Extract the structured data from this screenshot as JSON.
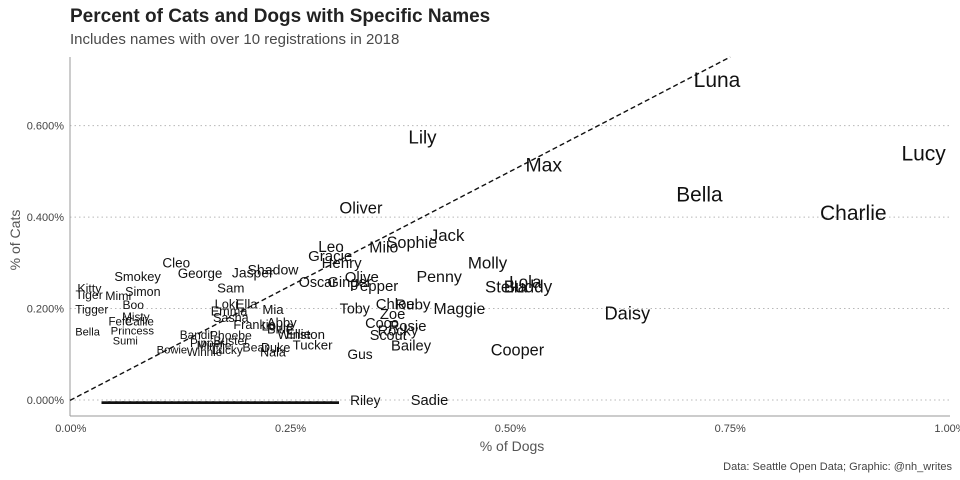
{
  "chart_data": {
    "type": "scatter",
    "title": "Percent of Cats and Dogs with Specific Names",
    "subtitle": "Includes names with over 10 registrations in 2018",
    "xlabel": "% of Dogs",
    "ylabel": "% of Cats",
    "caption": "Data: Seattle Open Data; Graphic: @nh_writes",
    "xlim": [
      -0.0009,
      1.0
    ],
    "ylim": [
      -0.035,
      0.75
    ],
    "x_ticks": [
      0,
      0.25,
      0.5,
      0.75,
      1.0
    ],
    "x_tick_labels": [
      "0.00%",
      "0.25%",
      "0.50%",
      "0.75%",
      "1.00%"
    ],
    "y_ticks": [
      0,
      0.2,
      0.4,
      0.6
    ],
    "y_tick_labels": [
      "0.000%",
      "0.200%",
      "0.400%",
      "0.600%"
    ],
    "grid": "horizontal dotted",
    "reference_line": "y = x (dashed)",
    "points": [
      {
        "name": "Luna",
        "x": 0.735,
        "y": 0.7
      },
      {
        "name": "Lucy",
        "x": 0.97,
        "y": 0.54
      },
      {
        "name": "Lily",
        "x": 0.4,
        "y": 0.575
      },
      {
        "name": "Max",
        "x": 0.538,
        "y": 0.515
      },
      {
        "name": "Bella",
        "x": 0.715,
        "y": 0.45
      },
      {
        "name": "Charlie",
        "x": 0.89,
        "y": 0.41
      },
      {
        "name": "Oliver",
        "x": 0.33,
        "y": 0.42
      },
      {
        "name": "Jack",
        "x": 0.428,
        "y": 0.36
      },
      {
        "name": "Sophie",
        "x": 0.388,
        "y": 0.345
      },
      {
        "name": "Milo",
        "x": 0.356,
        "y": 0.335
      },
      {
        "name": "Leo",
        "x": 0.296,
        "y": 0.335
      },
      {
        "name": "Gracie",
        "x": 0.295,
        "y": 0.315
      },
      {
        "name": "Henry",
        "x": 0.308,
        "y": 0.3
      },
      {
        "name": "Molly",
        "x": 0.474,
        "y": 0.3
      },
      {
        "name": "Cleo",
        "x": 0.12,
        "y": 0.3
      },
      {
        "name": "Shadow",
        "x": 0.23,
        "y": 0.285
      },
      {
        "name": "Jasper",
        "x": 0.207,
        "y": 0.278
      },
      {
        "name": "George",
        "x": 0.147,
        "y": 0.277
      },
      {
        "name": "Smokey",
        "x": 0.076,
        "y": 0.27
      },
      {
        "name": "Penny",
        "x": 0.419,
        "y": 0.27
      },
      {
        "name": "Olive",
        "x": 0.331,
        "y": 0.27
      },
      {
        "name": "Oscar",
        "x": 0.281,
        "y": 0.258
      },
      {
        "name": "Ginger",
        "x": 0.317,
        "y": 0.258
      },
      {
        "name": "Pepper",
        "x": 0.345,
        "y": 0.25
      },
      {
        "name": "Lola",
        "x": 0.517,
        "y": 0.258
      },
      {
        "name": "Stella",
        "x": 0.495,
        "y": 0.248
      },
      {
        "name": "Buddy",
        "x": 0.52,
        "y": 0.248
      },
      {
        "name": "Daisy",
        "x": 0.633,
        "y": 0.19
      },
      {
        "name": "Kitty",
        "x": 0.0,
        "y": 0.245
      },
      {
        "name": "Tiger",
        "x": 0.0,
        "y": 0.23
      },
      {
        "name": "Simon",
        "x": 0.082,
        "y": 0.237
      },
      {
        "name": "Mimi",
        "x": 0.054,
        "y": 0.228
      },
      {
        "name": "Sam",
        "x": 0.182,
        "y": 0.245
      },
      {
        "name": "Boo",
        "x": 0.071,
        "y": 0.208
      },
      {
        "name": "Tigger",
        "x": 0.0,
        "y": 0.198
      },
      {
        "name": "Toby",
        "x": 0.323,
        "y": 0.2
      },
      {
        "name": "Chloe",
        "x": 0.369,
        "y": 0.21
      },
      {
        "name": "Ruby",
        "x": 0.389,
        "y": 0.21
      },
      {
        "name": "Maggie",
        "x": 0.442,
        "y": 0.2
      },
      {
        "name": "Zoe",
        "x": 0.366,
        "y": 0.188
      },
      {
        "name": "Loki",
        "x": 0.177,
        "y": 0.21
      },
      {
        "name": "Ella",
        "x": 0.2,
        "y": 0.21
      },
      {
        "name": "Mia",
        "x": 0.23,
        "y": 0.198
      },
      {
        "name": "Emma",
        "x": 0.18,
        "y": 0.195
      },
      {
        "name": "Sadie",
        "x": 0.408,
        "y": 0.0
      },
      {
        "name": "Riley",
        "x": 0.335,
        "y": 0.0
      },
      {
        "name": "Cooper",
        "x": 0.508,
        "y": 0.11
      },
      {
        "name": "Bailey",
        "x": 0.387,
        "y": 0.12
      },
      {
        "name": "Gus",
        "x": 0.329,
        "y": 0.1
      },
      {
        "name": "Tucker",
        "x": 0.275,
        "y": 0.12
      },
      {
        "name": "Scout",
        "x": 0.361,
        "y": 0.142
      },
      {
        "name": "Rosie",
        "x": 0.383,
        "y": 0.162
      },
      {
        "name": "Coco",
        "x": 0.354,
        "y": 0.168
      },
      {
        "name": "Rocky",
        "x": 0.372,
        "y": 0.152
      },
      {
        "name": "Winston",
        "x": 0.262,
        "y": 0.143
      },
      {
        "name": "Ellie",
        "x": 0.259,
        "y": 0.145
      },
      {
        "name": "Nala",
        "x": 0.23,
        "y": 0.105
      },
      {
        "name": "Bear",
        "x": 0.21,
        "y": 0.115
      },
      {
        "name": "Duke",
        "x": 0.233,
        "y": 0.115
      },
      {
        "name": "Abby",
        "x": 0.24,
        "y": 0.17
      },
      {
        "name": "Blue",
        "x": 0.238,
        "y": 0.155
      },
      {
        "name": "Sasha",
        "x": 0.182,
        "y": 0.18
      },
      {
        "name": "Frankie",
        "x": 0.209,
        "y": 0.165
      },
      {
        "name": "Louie",
        "x": 0.235,
        "y": 0.162
      },
      {
        "name": "Phoebe",
        "x": 0.182,
        "y": 0.142
      },
      {
        "name": "Bandit",
        "x": 0.143,
        "y": 0.142
      },
      {
        "name": "Buster",
        "x": 0.182,
        "y": 0.13
      },
      {
        "name": "Lucky",
        "x": 0.178,
        "y": 0.11
      },
      {
        "name": "Pipper",
        "x": 0.155,
        "y": 0.125
      },
      {
        "name": "Minnie",
        "x": 0.163,
        "y": 0.12
      },
      {
        "name": "Winnie",
        "x": 0.152,
        "y": 0.105
      },
      {
        "name": "Princess",
        "x": 0.07,
        "y": 0.152
      },
      {
        "name": "Misty",
        "x": 0.074,
        "y": 0.182
      },
      {
        "name": "Fefe",
        "x": 0.056,
        "y": 0.172
      },
      {
        "name": "Callie",
        "x": 0.078,
        "y": 0.172
      },
      {
        "name": "Bella2",
        "x": 0.0,
        "y": 0.15
      },
      {
        "name": "Sumi",
        "x": 0.062,
        "y": 0.13
      },
      {
        "name": "Bowie",
        "x": 0.115,
        "y": 0.11
      }
    ],
    "bottom_row_y": 0.0,
    "bottom_row_x_range": [
      0.04,
      0.3
    ]
  }
}
